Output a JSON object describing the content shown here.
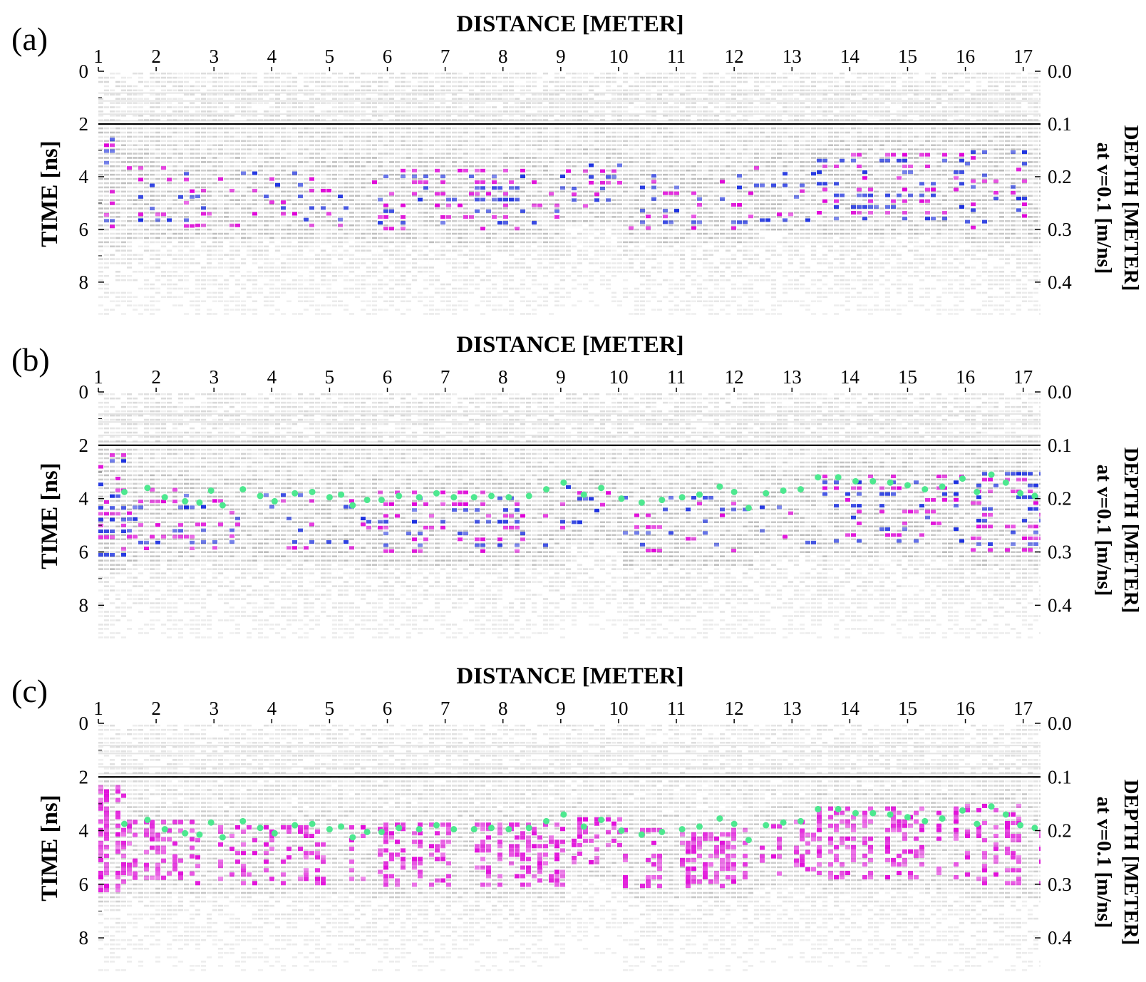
{
  "figure": {
    "panels": [
      {
        "label": "(a)",
        "show_picks": false,
        "style": "bipolar"
      },
      {
        "label": "(b)",
        "show_picks": true,
        "style": "bipolar"
      },
      {
        "label": "(c)",
        "show_picks": true,
        "style": "envelope"
      }
    ]
  },
  "chart_data": {
    "type": "heatmap",
    "description_type": "radargram",
    "xlabel": "DISTANCE [METER]",
    "ylabel": "TIME [ns]",
    "y2label_line1": "DEPTH [METER]",
    "y2label_line2": "at v=0.1 [m/ns]",
    "x_ticks": [
      1,
      2,
      3,
      4,
      5,
      6,
      7,
      8,
      9,
      10,
      11,
      12,
      13,
      14,
      15,
      16,
      17
    ],
    "xlim": [
      1,
      17.3
    ],
    "y_ticks": [
      0,
      2,
      4,
      6,
      8
    ],
    "ylim": [
      0,
      9.3
    ],
    "y2_ticks": [
      "0.0",
      "0.1",
      "0.2",
      "0.3",
      "0.4"
    ],
    "y2_tick_times": [
      0,
      2,
      4,
      6,
      8
    ],
    "reference_line_time_ns": 2,
    "colors": {
      "background": "#ffffff",
      "noise": "#6f6f6f",
      "positive": "#e000d8",
      "negative": "#1a2fe0",
      "picks": "#4de88f",
      "reference_line": "#000000"
    },
    "picked_reflector": {
      "name": "",
      "x": [
        1.45,
        1.85,
        2.15,
        2.5,
        2.75,
        2.95,
        3.15,
        3.5,
        3.8,
        4.05,
        4.4,
        4.7,
        5.0,
        5.2,
        5.4,
        5.65,
        5.9,
        6.2,
        6.55,
        6.85,
        7.15,
        7.5,
        7.8,
        8.1,
        8.45,
        8.75,
        9.05,
        9.4,
        9.7,
        10.05,
        10.4,
        10.75,
        11.1,
        11.4,
        11.75,
        12.0,
        12.25,
        12.55,
        12.85,
        13.15,
        13.45,
        13.8,
        14.1,
        14.4,
        14.7,
        15.0,
        15.3,
        15.6,
        15.95,
        16.2,
        16.45,
        16.7,
        16.95,
        17.2
      ],
      "y": [
        3.75,
        3.6,
        3.95,
        4.1,
        4.15,
        3.7,
        4.25,
        3.65,
        3.9,
        4.1,
        3.8,
        3.75,
        3.95,
        3.85,
        4.25,
        4.05,
        4.05,
        3.9,
        3.95,
        3.8,
        3.95,
        3.95,
        3.9,
        3.95,
        3.9,
        3.65,
        3.4,
        3.85,
        3.6,
        4.0,
        4.15,
        4.05,
        3.95,
        3.85,
        3.55,
        3.75,
        4.35,
        3.8,
        3.7,
        3.65,
        3.2,
        3.2,
        3.35,
        3.35,
        3.4,
        3.5,
        3.65,
        3.55,
        3.25,
        3.75,
        3.1,
        3.4,
        3.8,
        3.9
      ]
    },
    "reflection_zone": {
      "segments": [
        {
          "x": [
            1.0,
            1.45
          ],
          "top": 2.3,
          "bottom": 6.2,
          "strength": 1.0
        },
        {
          "x": [
            1.45,
            2.6
          ],
          "top": 3.6,
          "bottom": 5.8,
          "strength": 0.75
        },
        {
          "x": [
            2.6,
            5.6
          ],
          "top": 3.8,
          "bottom": 5.9,
          "strength": 0.65
        },
        {
          "x": [
            5.6,
            9.0
          ],
          "top": 3.7,
          "bottom": 6.0,
          "strength": 0.8
        },
        {
          "x": [
            9.0,
            10.0
          ],
          "top": 3.5,
          "bottom": 5.2,
          "strength": 0.55
        },
        {
          "x": [
            10.0,
            12.3
          ],
          "top": 3.9,
          "bottom": 6.0,
          "strength": 0.7
        },
        {
          "x": [
            12.3,
            13.4
          ],
          "top": 3.6,
          "bottom": 5.6,
          "strength": 0.55
        },
        {
          "x": [
            13.4,
            15.9
          ],
          "top": 3.1,
          "bottom": 5.7,
          "strength": 0.85
        },
        {
          "x": [
            15.9,
            17.3
          ],
          "top": 3.0,
          "bottom": 6.0,
          "strength": 0.9
        }
      ]
    }
  }
}
